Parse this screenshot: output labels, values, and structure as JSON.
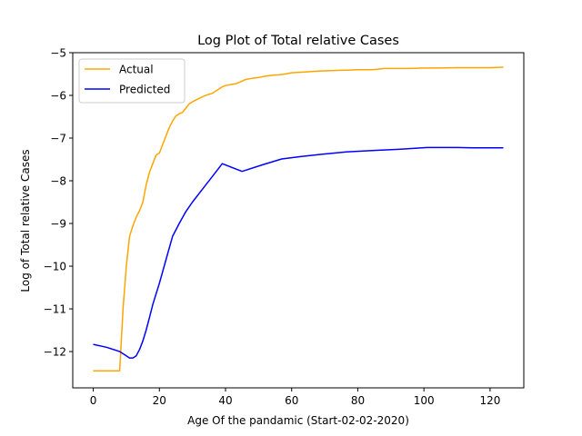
{
  "chart_data": {
    "type": "line",
    "title": "Log Plot of Total relative Cases",
    "xlabel": "Age Of the pandamic (Start-02-02-2020)",
    "ylabel": "Log of Total relative Cases",
    "xlim": [
      -6.2,
      130.2
    ],
    "ylim": [
      -12.85,
      -5.0
    ],
    "xticks": [
      0,
      20,
      40,
      60,
      80,
      100,
      120
    ],
    "yticks": [
      -12,
      -11,
      -10,
      -9,
      -8,
      -7,
      -6,
      -5
    ],
    "xtick_labels": [
      "0",
      "20",
      "40",
      "60",
      "80",
      "100",
      "120"
    ],
    "ytick_labels": [
      "−12",
      "−11",
      "−10",
      "−9",
      "−8",
      "−7",
      "−6",
      "−5"
    ],
    "grid": false,
    "legend_position": "top-left",
    "series": [
      {
        "name": "Actual",
        "color": "#ffa500",
        "x": [
          0,
          8,
          9,
          10,
          11,
          12,
          13,
          14,
          15,
          16,
          17,
          18,
          19,
          20,
          21,
          22,
          23,
          24,
          25,
          26,
          27,
          28,
          29,
          30,
          32,
          34,
          36,
          37,
          38,
          39,
          40,
          42,
          43,
          44,
          46,
          48,
          50,
          52,
          54,
          56,
          58,
          60,
          64,
          68,
          72,
          76,
          80,
          84,
          86,
          88,
          92,
          96,
          100,
          104,
          110,
          116,
          120,
          124
        ],
        "y": [
          -12.45,
          -12.45,
          -11.0,
          -10.0,
          -9.3,
          -9.05,
          -8.85,
          -8.7,
          -8.5,
          -8.1,
          -7.8,
          -7.6,
          -7.4,
          -7.35,
          -7.15,
          -6.95,
          -6.75,
          -6.6,
          -6.48,
          -6.43,
          -6.4,
          -6.3,
          -6.2,
          -6.15,
          -6.07,
          -6.0,
          -5.95,
          -5.9,
          -5.85,
          -5.8,
          -5.77,
          -5.74,
          -5.73,
          -5.7,
          -5.63,
          -5.6,
          -5.58,
          -5.55,
          -5.53,
          -5.52,
          -5.5,
          -5.47,
          -5.45,
          -5.43,
          -5.42,
          -5.41,
          -5.4,
          -5.4,
          -5.39,
          -5.37,
          -5.37,
          -5.37,
          -5.36,
          -5.36,
          -5.35,
          -5.35,
          -5.35,
          -5.34
        ]
      },
      {
        "name": "Predicted",
        "color": "#0000ff",
        "x": [
          0,
          4,
          8,
          10,
          11,
          12,
          13,
          14,
          15,
          16,
          17,
          18,
          19,
          20,
          22,
          24,
          26,
          28,
          30,
          33,
          36,
          39,
          45,
          51,
          57,
          63,
          69,
          77,
          85,
          93,
          101,
          105,
          110,
          115,
          120,
          124
        ],
        "y": [
          -11.83,
          -11.9,
          -12.0,
          -12.1,
          -12.15,
          -12.15,
          -12.1,
          -11.95,
          -11.75,
          -11.5,
          -11.2,
          -10.9,
          -10.65,
          -10.4,
          -9.85,
          -9.3,
          -9.0,
          -8.72,
          -8.5,
          -8.2,
          -7.9,
          -7.6,
          -7.78,
          -7.63,
          -7.49,
          -7.43,
          -7.38,
          -7.32,
          -7.29,
          -7.26,
          -7.22,
          -7.22,
          -7.22,
          -7.23,
          -7.23,
          -7.23
        ]
      }
    ]
  }
}
